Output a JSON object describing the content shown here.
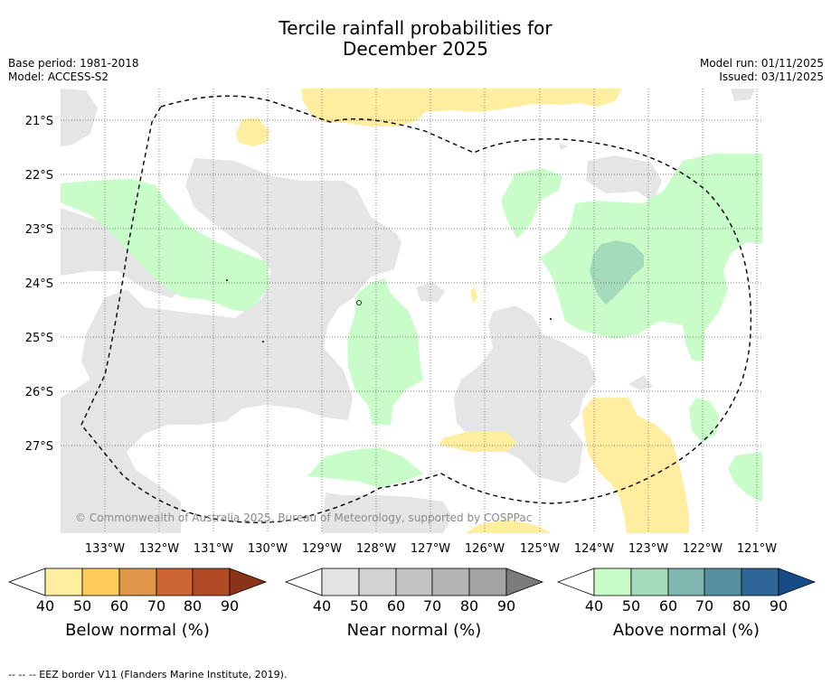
{
  "title_line1": "Tercile rainfall probabilities for",
  "title_line2": "December 2025",
  "base_period": "Base period: 1981-2018",
  "model": "Model: ACCESS-S2",
  "model_run": "Model run: 01/11/2025",
  "issued": "Issued: 03/11/2025",
  "copyright": "© Commonwealth of Australia 2025, Bureau of Meteorology, supported by COSPPac",
  "footer": "--  --  -- EEZ border V11 (Flanders Marine Institute, 2019).",
  "lat_labels": [
    "21°S",
    "22°S",
    "23°S",
    "24°S",
    "25°S",
    "26°S",
    "27°S"
  ],
  "lon_labels": [
    "133°W",
    "132°W",
    "131°W",
    "130°W",
    "129°W",
    "128°W",
    "127°W",
    "126°W",
    "125°W",
    "124°W",
    "123°W",
    "122°W",
    "121°W"
  ],
  "colorbars": [
    {
      "title": "Below normal (%)",
      "ticks": [
        "40",
        "50",
        "60",
        "70",
        "80",
        "90"
      ],
      "colors": [
        "#ffeda0",
        "#fecc5c",
        "#e0964a",
        "#cc6433",
        "#b04a24"
      ],
      "extend_color": "#8b3318"
    },
    {
      "title": "Near normal (%)",
      "ticks": [
        "40",
        "50",
        "60",
        "70",
        "80",
        "90"
      ],
      "colors": [
        "#e3e3e3",
        "#d2d2d2",
        "#c3c3c3",
        "#b4b4b4",
        "#a3a3a3"
      ],
      "extend_color": "#7c7c7c"
    },
    {
      "title": "Above normal (%)",
      "ticks": [
        "40",
        "50",
        "60",
        "70",
        "80",
        "90"
      ],
      "colors": [
        "#c8fcc8",
        "#a5dabb",
        "#7fb6af",
        "#5690a0",
        "#2f6597"
      ],
      "extend_color": "#164c87"
    }
  ]
}
